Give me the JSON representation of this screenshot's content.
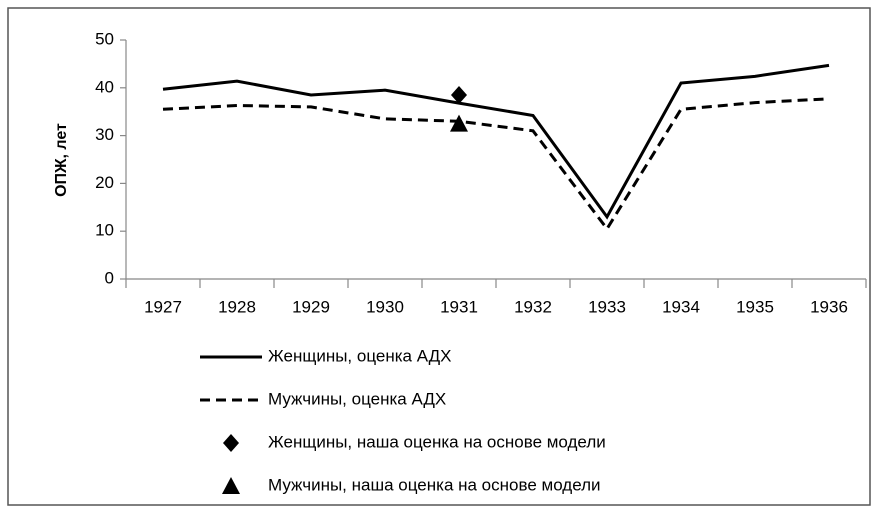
{
  "chart_data": {
    "type": "line",
    "y_label": "ОПЖ, лет",
    "categories": [
      "1927",
      "1928",
      "1929",
      "1930",
      "1931",
      "1932",
      "1933",
      "1934",
      "1935",
      "1936"
    ],
    "series": [
      {
        "name": "Женщины, оценка АДХ",
        "color": "#000000",
        "style": "solid",
        "values": [
          39.7,
          41.4,
          38.5,
          39.5,
          36.8,
          34.2,
          13,
          41,
          42.4,
          44.7
        ]
      },
      {
        "name": "Мужчины, оценка АДХ",
        "color": "#000000",
        "style": "dashed",
        "values": [
          35.5,
          36.3,
          36,
          33.5,
          33,
          31,
          10.5,
          35.5,
          36.9,
          37.7
        ]
      },
      {
        "name": "Женщины, наша оценка на основе модели",
        "color": "#000000",
        "style": "diamond",
        "values": [
          null,
          null,
          null,
          null,
          38.5,
          null,
          null,
          null,
          null,
          null
        ]
      },
      {
        "name": "Мужчины, наша оценка на основе модели",
        "color": "#000000",
        "style": "triangle",
        "values": [
          null,
          null,
          null,
          null,
          32.5,
          null,
          null,
          null,
          null,
          null
        ]
      }
    ],
    "ylim": [
      0,
      50
    ],
    "yticks": [
      0,
      10,
      20,
      30,
      40,
      50
    ],
    "grid": false
  }
}
